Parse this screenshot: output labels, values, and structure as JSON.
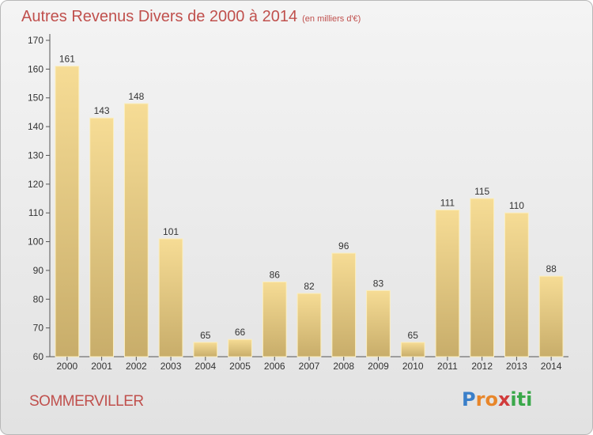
{
  "chart_data": {
    "type": "bar",
    "title": "Autres Revenus Divers de 2000 à 2014",
    "subtitle": "(en milliers d'€)",
    "categories": [
      "2000",
      "2001",
      "2002",
      "2003",
      "2004",
      "2005",
      "2006",
      "2007",
      "2008",
      "2009",
      "2010",
      "2011",
      "2012",
      "2013",
      "2014"
    ],
    "values": [
      161,
      143,
      148,
      101,
      65,
      66,
      86,
      82,
      96,
      83,
      65,
      111,
      115,
      110,
      88
    ],
    "ylim": [
      60,
      170
    ],
    "yticks": [
      60,
      70,
      80,
      90,
      100,
      110,
      120,
      130,
      140,
      150,
      160,
      170
    ],
    "xlabel": "",
    "ylabel": "",
    "grid": false,
    "colors": {
      "bar_light": "#f6dc95",
      "bar_dark": "#c8ad6a",
      "title": "#c0504d"
    }
  },
  "city_name": "SOMMERVILLER",
  "logo": {
    "letters": [
      "P",
      "r",
      "o",
      "x",
      "i",
      "t",
      "i"
    ],
    "colors": [
      "#3a7fc9",
      "#e8862a",
      "#e8862a",
      "#d13b3b",
      "#3aa84a",
      "#3aa84a",
      "#3aa84a"
    ]
  }
}
